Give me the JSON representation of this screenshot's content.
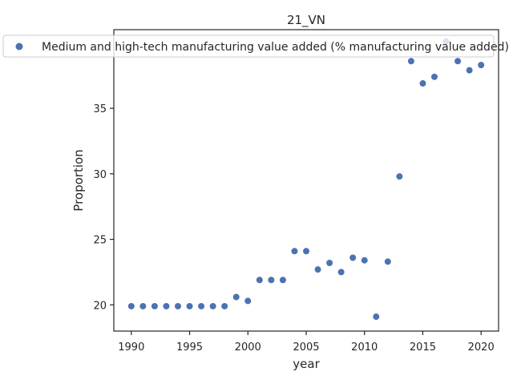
{
  "chart_data": {
    "type": "scatter",
    "title": "21_VN",
    "xlabel": "year",
    "ylabel": "Proportion",
    "xlim": [
      1988.5,
      2021.5
    ],
    "ylim": [
      18.0,
      41.0
    ],
    "xticks": [
      1990,
      1995,
      2000,
      2005,
      2010,
      2015,
      2020
    ],
    "yticks": [
      20,
      25,
      30,
      35
    ],
    "grid": false,
    "legend_position": "top-left",
    "series": [
      {
        "name": "Medium and high-tech manufacturing value added (% manufacturing value added)",
        "color": "#4c72b0",
        "x": [
          1990,
          1991,
          1992,
          1993,
          1994,
          1995,
          1996,
          1997,
          1998,
          1999,
          2000,
          2001,
          2002,
          2003,
          2004,
          2005,
          2006,
          2007,
          2008,
          2009,
          2010,
          2011,
          2012,
          2013,
          2014,
          2015,
          2016,
          2017,
          2018,
          2019,
          2020
        ],
        "y": [
          19.9,
          19.9,
          19.9,
          19.9,
          19.9,
          19.9,
          19.9,
          19.9,
          19.9,
          20.6,
          20.3,
          21.9,
          21.9,
          21.9,
          24.1,
          24.1,
          22.7,
          23.2,
          22.5,
          23.6,
          23.4,
          19.1,
          23.3,
          29.8,
          38.6,
          36.9,
          37.4,
          40.1,
          38.6,
          37.9,
          38.3
        ]
      }
    ]
  }
}
